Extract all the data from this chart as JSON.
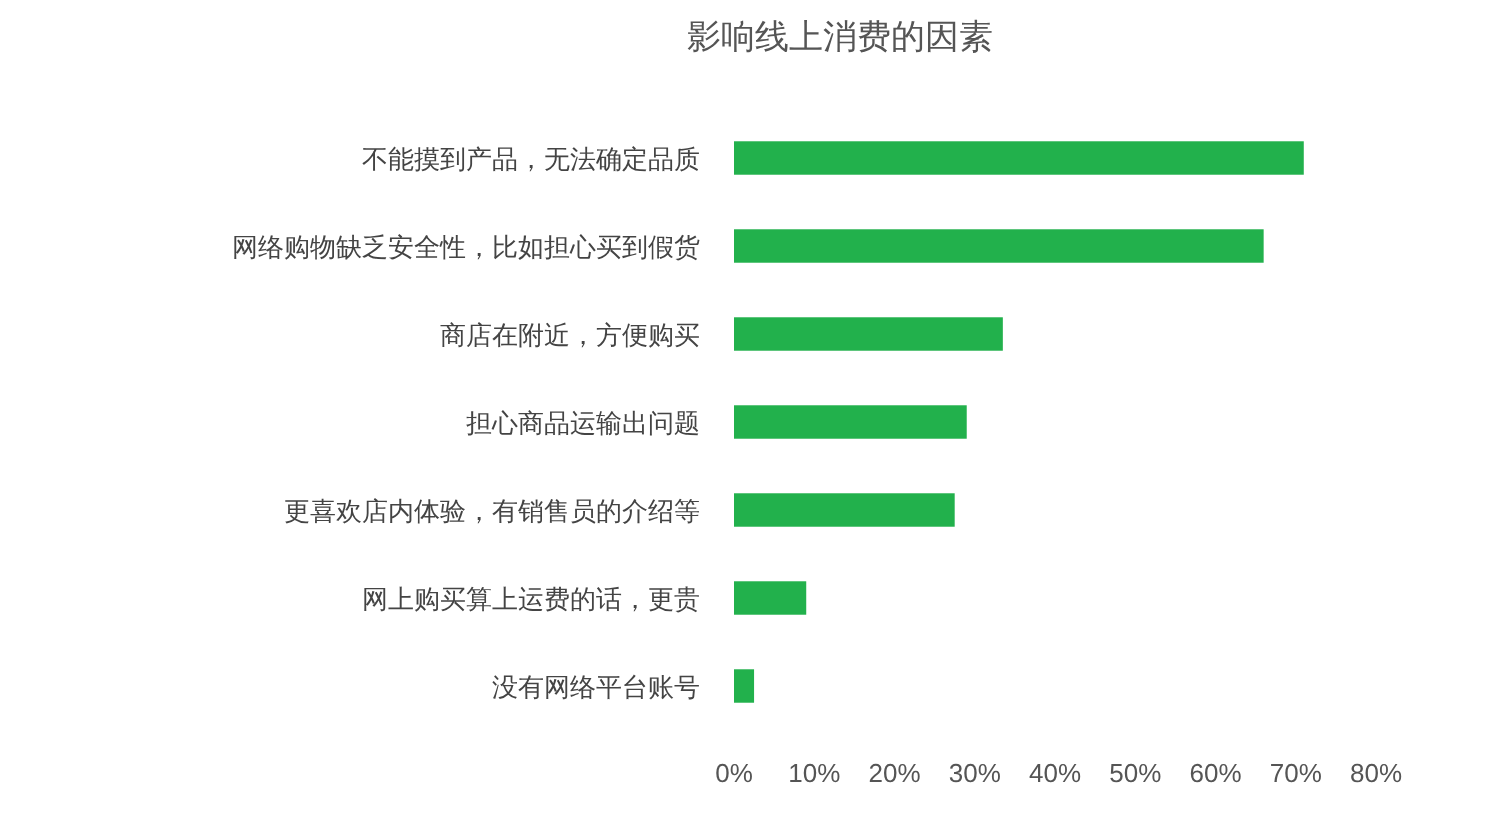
{
  "chart_data": {
    "type": "bar",
    "orientation": "horizontal",
    "title": "影响线上消费的因素",
    "categories": [
      "不能摸到产品，无法确定品质",
      "网络购物缺乏安全性，比如担心买到假货",
      "商店在附近，方便购买",
      "担心商品运输出问题",
      "更喜欢店内体验，有销售员的介绍等",
      "网上购买算上运费的话，更贵",
      "没有网络平台账号"
    ],
    "values": [
      71,
      66,
      33.5,
      29,
      27.5,
      9,
      2.5
    ],
    "color": "#22b14c",
    "xlim": [
      0,
      80
    ],
    "xticks": [
      {
        "value": 0,
        "label": "0%"
      },
      {
        "value": 10,
        "label": "10%"
      },
      {
        "value": 20,
        "label": "20%"
      },
      {
        "value": 30,
        "label": "30%"
      },
      {
        "value": 40,
        "label": "40%"
      },
      {
        "value": 50,
        "label": "50%"
      },
      {
        "value": 60,
        "label": "60%"
      },
      {
        "value": 70,
        "label": "70%"
      },
      {
        "value": 80,
        "label": "80%"
      }
    ]
  }
}
